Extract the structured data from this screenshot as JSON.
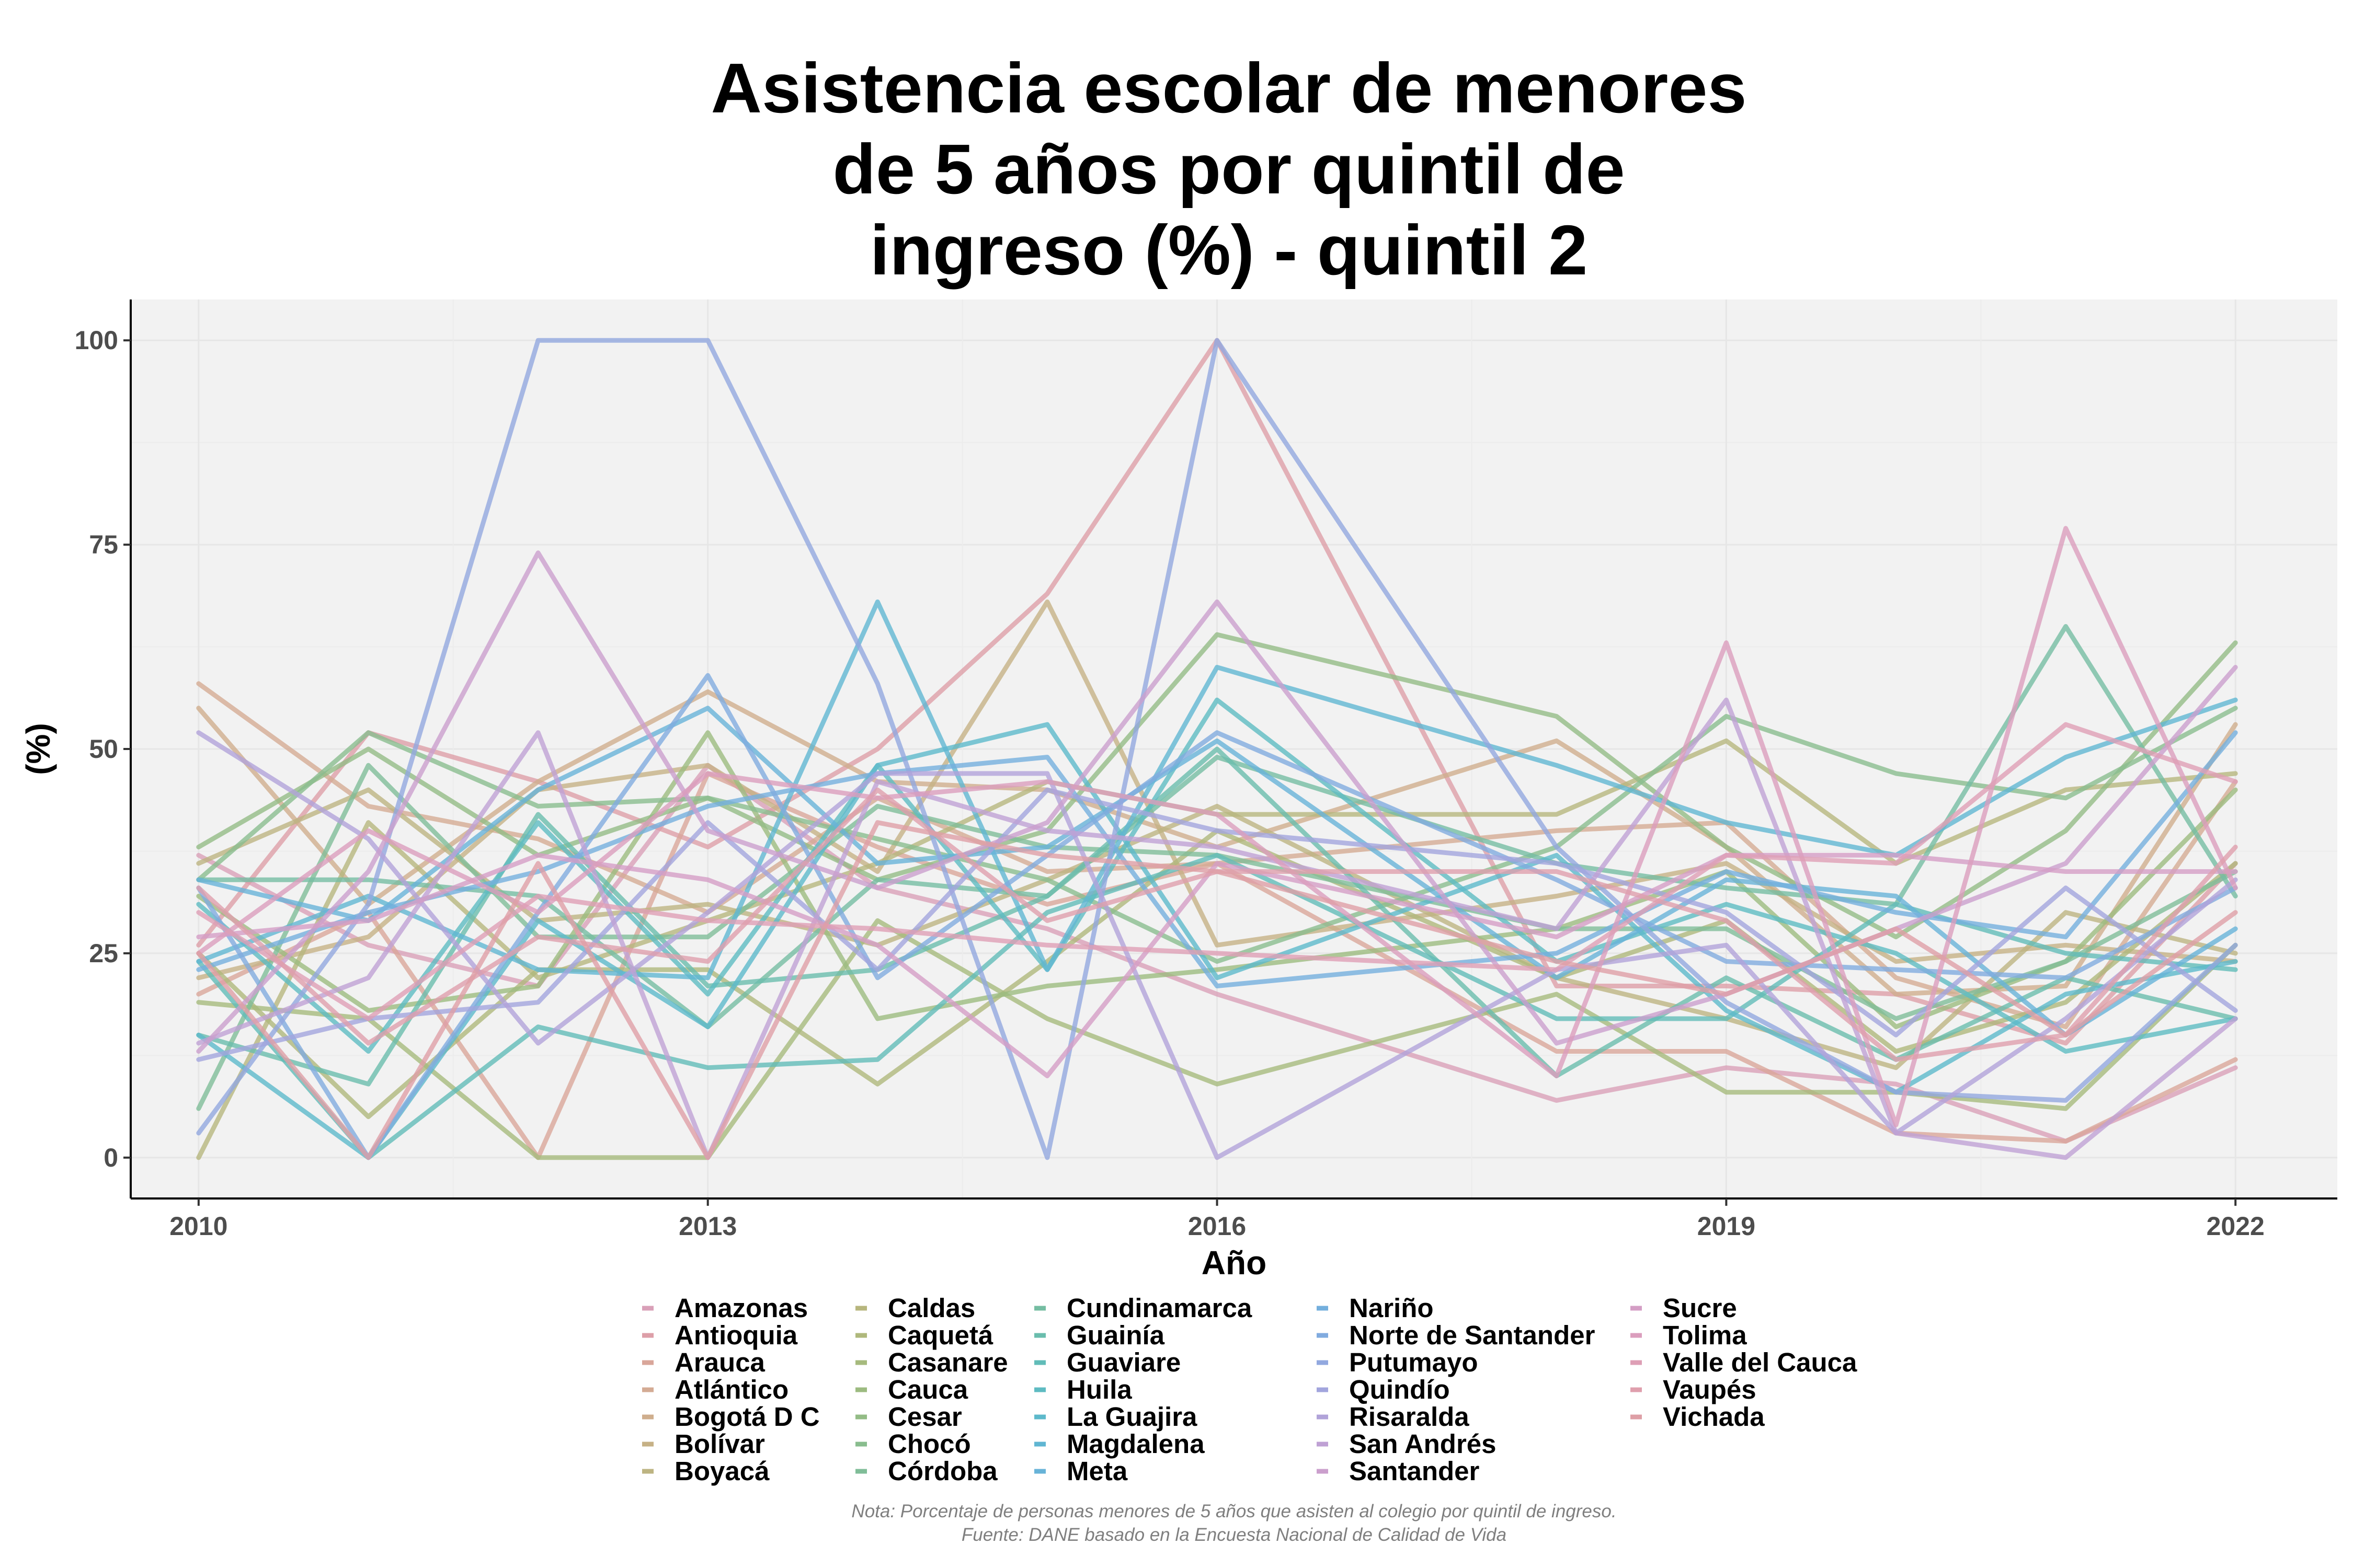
{
  "chart_data": {
    "type": "line",
    "title_lines": [
      "Asistencia escolar de menores",
      "de 5 años por quintil de",
      "ingreso (%) - quintil 2"
    ],
    "xlabel": "Año",
    "ylabel": "(%)",
    "x_ticks": [
      "2010",
      "2013",
      "2016",
      "2019",
      "2022"
    ],
    "y_ticks": [
      "0",
      "25",
      "50",
      "75",
      "100"
    ],
    "xlim": [
      2009.6,
      2022.6
    ],
    "ylim": [
      -5,
      105
    ],
    "x": [
      2010,
      2011,
      2012,
      2013,
      2014,
      2015,
      2016,
      2018,
      2019,
      2020,
      2021,
      2022
    ],
    "grid": true,
    "legend_position": "bottom",
    "note": "Nota: Porcentaje de personas menores de 5 años que asisten al colegio por quintil de ingreso.",
    "source": "Fuente: DANE basado en la Encuesta Nacional de Calidad de Vida",
    "series": [
      {
        "name": "Amazonas",
        "color": "#d9a0b8",
        "values": [
          37,
          26,
          21,
          48,
          33,
          28,
          20,
          7,
          11,
          9,
          2,
          11
        ]
      },
      {
        "name": "Antioquia",
        "color": "#dd9fa8",
        "values": [
          26,
          52,
          46,
          38,
          50,
          69,
          100,
          21,
          21,
          20,
          14,
          36
        ]
      },
      {
        "name": "Arauca",
        "color": "#d9a69a",
        "values": [
          20,
          30,
          0,
          47,
          38,
          31,
          36,
          13,
          13,
          3,
          2,
          12
        ]
      },
      {
        "name": "Atlántico",
        "color": "#d4ab94",
        "values": [
          58,
          43,
          39,
          30,
          44,
          35,
          36,
          40,
          41,
          22,
          16,
          46
        ]
      },
      {
        "name": "Bogotá D C",
        "color": "#cfae8d",
        "values": [
          55,
          31,
          46,
          57,
          46,
          45,
          38,
          51,
          38,
          20,
          21,
          53
        ]
      },
      {
        "name": "Bolívar",
        "color": "#c6b186",
        "values": [
          22,
          27,
          45,
          48,
          35,
          68,
          26,
          32,
          36,
          24,
          26,
          24
        ]
      },
      {
        "name": "Boyacá",
        "color": "#bdb482",
        "values": [
          36,
          45,
          29,
          31,
          26,
          34,
          43,
          22,
          17,
          11,
          30,
          25
        ]
      },
      {
        "name": "Caldas",
        "color": "#b7b67e",
        "values": [
          0,
          41,
          22,
          29,
          36,
          46,
          42,
          42,
          51,
          36,
          45,
          47
        ]
      },
      {
        "name": "Caquetá",
        "color": "#afb87c",
        "values": [
          25,
          5,
          23,
          23,
          9,
          24,
          40,
          22,
          29,
          13,
          19,
          36
        ]
      },
      {
        "name": "Casanare",
        "color": "#a6ba7d",
        "values": [
          19,
          17,
          0,
          0,
          29,
          17,
          9,
          20,
          8,
          8,
          6,
          26
        ]
      },
      {
        "name": "Cauca",
        "color": "#9cbb80",
        "values": [
          32,
          18,
          21,
          52,
          17,
          21,
          23,
          28,
          35,
          16,
          24,
          45
        ]
      },
      {
        "name": "Cesar",
        "color": "#93bc86",
        "values": [
          38,
          50,
          37,
          44,
          34,
          40,
          64,
          54,
          38,
          27,
          40,
          63
        ]
      },
      {
        "name": "Chocó",
        "color": "#89bd8e",
        "values": [
          34,
          52,
          43,
          44,
          39,
          34,
          24,
          38,
          54,
          47,
          44,
          55
        ]
      },
      {
        "name": "Córdoba",
        "color": "#80bd98",
        "values": [
          6,
          48,
          27,
          27,
          43,
          38,
          37,
          28,
          28,
          17,
          24,
          35
        ]
      },
      {
        "name": "Cundinamarca",
        "color": "#75bda2",
        "values": [
          34,
          34,
          32,
          16,
          34,
          32,
          49,
          36,
          33,
          31,
          65,
          32
        ]
      },
      {
        "name": "Guainía",
        "color": "#6abdad",
        "values": [
          15,
          9,
          42,
          21,
          23,
          32,
          50,
          10,
          22,
          12,
          22,
          17
        ]
      },
      {
        "name": "Guaviare",
        "color": "#61bcb8",
        "values": [
          24,
          0,
          16,
          11,
          12,
          30,
          37,
          17,
          17,
          31,
          25,
          23
        ]
      },
      {
        "name": "Huila",
        "color": "#5ebbc2",
        "values": [
          31,
          13,
          41,
          20,
          48,
          23,
          56,
          24,
          31,
          25,
          13,
          17
        ]
      },
      {
        "name": "La Guajira",
        "color": "#5db9cb",
        "values": [
          15,
          0,
          29,
          16,
          48,
          53,
          22,
          37,
          18,
          8,
          20,
          24
        ]
      },
      {
        "name": "Magdalena",
        "color": "#60b6d2",
        "values": [
          24,
          32,
          23,
          22,
          68,
          23,
          60,
          48,
          41,
          37,
          49,
          56
        ]
      },
      {
        "name": "Meta",
        "color": "#68b3d8",
        "values": [
          34,
          29,
          45,
          55,
          36,
          38,
          51,
          22,
          34,
          32,
          15,
          28
        ]
      },
      {
        "name": "Nariño",
        "color": "#74afdd",
        "values": [
          23,
          30,
          35,
          43,
          47,
          49,
          21,
          25,
          35,
          30,
          27,
          52
        ]
      },
      {
        "name": "Norte de Santander",
        "color": "#81abdf",
        "values": [
          33,
          0,
          30,
          59,
          22,
          37,
          52,
          34,
          24,
          23,
          22,
          33
        ]
      },
      {
        "name": "Putumayo",
        "color": "#92a8df",
        "values": [
          3,
          31,
          100,
          100,
          58,
          0,
          100,
          38,
          19,
          8,
          7,
          26
        ]
      },
      {
        "name": "Quindío",
        "color": "#a2a5dd",
        "values": [
          12,
          17,
          19,
          41,
          23,
          45,
          40,
          36,
          30,
          15,
          33,
          18
        ]
      },
      {
        "name": "Risaralda",
        "color": "#b1a3d9",
        "values": [
          52,
          39,
          14,
          30,
          47,
          47,
          0,
          23,
          26,
          3,
          17,
          34
        ]
      },
      {
        "name": "San Andrés",
        "color": "#bfa1d4",
        "values": [
          14,
          22,
          52,
          0,
          46,
          40,
          38,
          28,
          56,
          3,
          0,
          17
        ]
      },
      {
        "name": "Santander",
        "color": "#cb9fcd",
        "values": [
          13,
          35,
          74,
          40,
          33,
          41,
          68,
          14,
          20,
          28,
          36,
          60
        ]
      },
      {
        "name": "Sucre",
        "color": "#d49ec5",
        "values": [
          27,
          29,
          37,
          34,
          26,
          10,
          36,
          27,
          37,
          37,
          35,
          35
        ]
      },
      {
        "name": "Tolima",
        "color": "#db9ebd",
        "values": [
          25,
          40,
          30,
          47,
          44,
          46,
          42,
          10,
          63,
          4,
          77,
          33
        ]
      },
      {
        "name": "Valle del Cauca",
        "color": "#de9fb5",
        "values": [
          30,
          17,
          32,
          29,
          28,
          26,
          25,
          23,
          37,
          36,
          53,
          46
        ]
      },
      {
        "name": "Vaupés",
        "color": "#df9fad",
        "values": [
          33,
          14,
          27,
          24,
          45,
          29,
          35,
          35,
          29,
          12,
          15,
          38
        ]
      },
      {
        "name": "Vichada",
        "color": "#de9fa6",
        "values": [
          25,
          0,
          36,
          0,
          41,
          37,
          35,
          24,
          20,
          28,
          15,
          30
        ]
      }
    ]
  }
}
